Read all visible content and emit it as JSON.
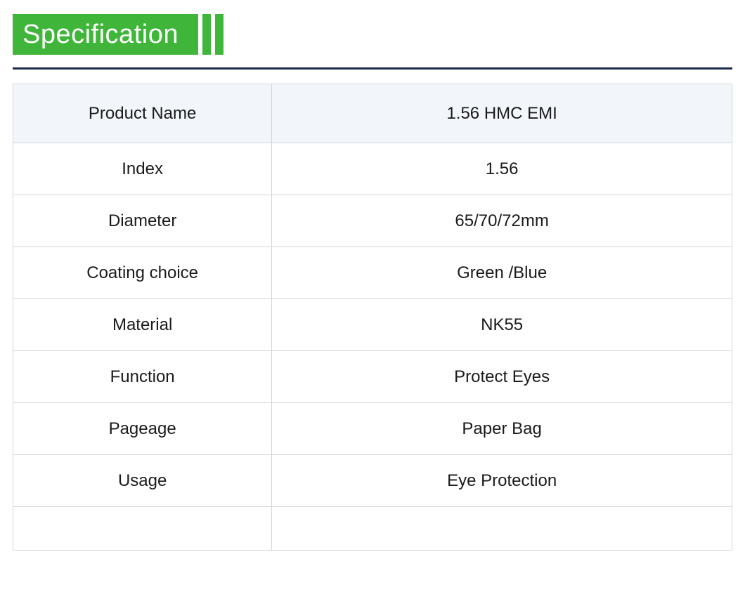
{
  "header": {
    "title": "Specification",
    "title_bg": "#3fb63a",
    "title_color": "#ffffff",
    "title_fontsize": 38,
    "stripe_color": "#3fb63a",
    "stripe_count": 2,
    "divider_color": "#1a2b4c"
  },
  "table": {
    "border_color": "#d3d6db",
    "header_bg": "#f2f5f9",
    "row_bg": "#ffffff",
    "text_color": "#1a1a1a",
    "fontsize": 24,
    "label_col_width_pct": 36,
    "value_col_width_pct": 64,
    "rows": [
      {
        "label": "Product Name",
        "value": "1.56 HMC EMI",
        "header": true
      },
      {
        "label": "Index",
        "value": "1.56",
        "header": false
      },
      {
        "label": "Diameter",
        "value": "65/70/72mm",
        "header": false
      },
      {
        "label": "Coating choice",
        "value": "Green /Blue",
        "header": false
      },
      {
        "label": "Material",
        "value": "NK55",
        "header": false
      },
      {
        "label": "Function",
        "value": "Protect Eyes",
        "header": false
      },
      {
        "label": "Pageage",
        "value": "Paper Bag",
        "header": false
      },
      {
        "label": "Usage",
        "value": "Eye Protection",
        "header": false
      },
      {
        "label": "",
        "value": "",
        "header": false,
        "empty": true
      }
    ]
  }
}
